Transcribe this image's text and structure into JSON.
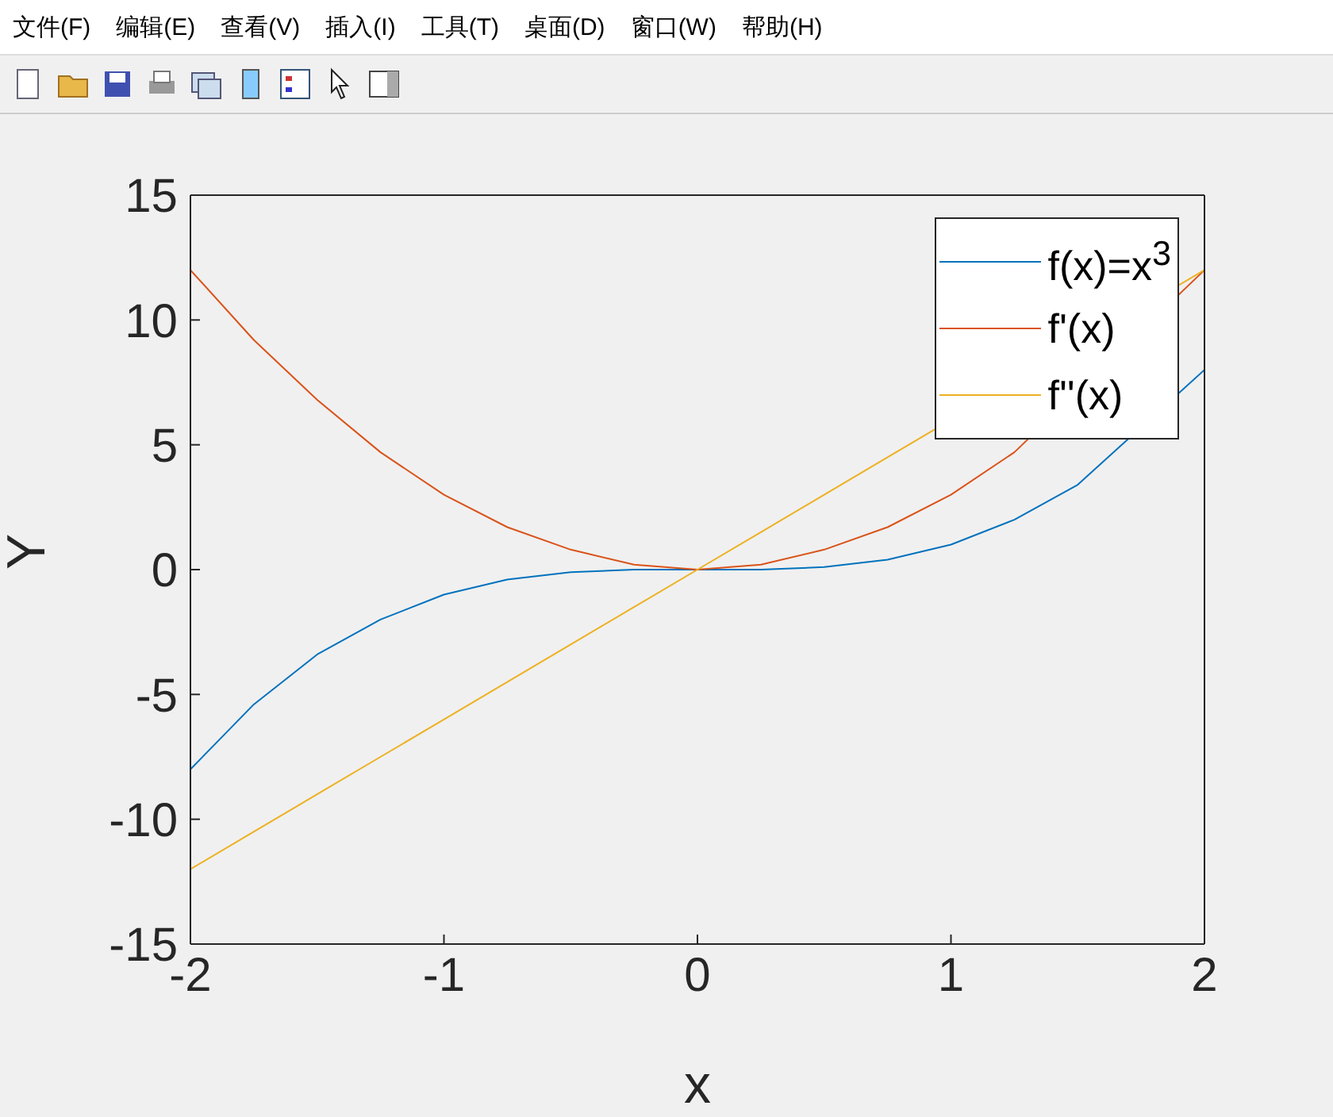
{
  "chart_data": {
    "type": "line",
    "xlabel": "x",
    "ylabel": "Y",
    "x": [
      -2,
      -1.75,
      -1.5,
      -1.25,
      -1,
      -0.75,
      -0.5,
      -0.25,
      0,
      0.25,
      0.5,
      0.75,
      1,
      1.25,
      1.5,
      1.75,
      2
    ],
    "series": [
      {
        "name": "f(x)=x$^{3}$",
        "color": "#0072bd",
        "values": [
          -8,
          -5.4,
          -3.4,
          -2,
          -1,
          -0.4,
          -0.1,
          0,
          0,
          0,
          0.1,
          0.4,
          1,
          2,
          3.4,
          null,
          8
        ]
      },
      {
        "name": "f'(x)",
        "color": "#d95319",
        "values": [
          12,
          9.2,
          6.8,
          4.7,
          3,
          1.7,
          0.8,
          0.2,
          0,
          0.2,
          0.8,
          1.7,
          3,
          4.7,
          null,
          null,
          12
        ]
      },
      {
        "name": "f''(x)",
        "color": "#edb120",
        "values": [
          -12,
          -10.5,
          -9,
          -7.5,
          -6,
          -4.5,
          -3,
          -1.5,
          0,
          1.5,
          3,
          4.5,
          null,
          null,
          null,
          null,
          12
        ]
      }
    ],
    "xlim": [
      -2,
      2
    ],
    "xticks": [
      -2,
      -1,
      0,
      1,
      2
    ],
    "ylim": [
      -15,
      15
    ],
    "yticks": [
      -15,
      -10,
      -5,
      0,
      5,
      10,
      15
    ],
    "grid": false,
    "legend": "top right",
    "marker": "none",
    "line_style": "solid",
    "annotations": [
      "文件(F)",
      "编辑(E)",
      "查看(V)",
      "插入(I)",
      "工具(T)",
      "桌面(D)",
      "窗口(W)",
      "帮助(H)"
    ]
  }
}
